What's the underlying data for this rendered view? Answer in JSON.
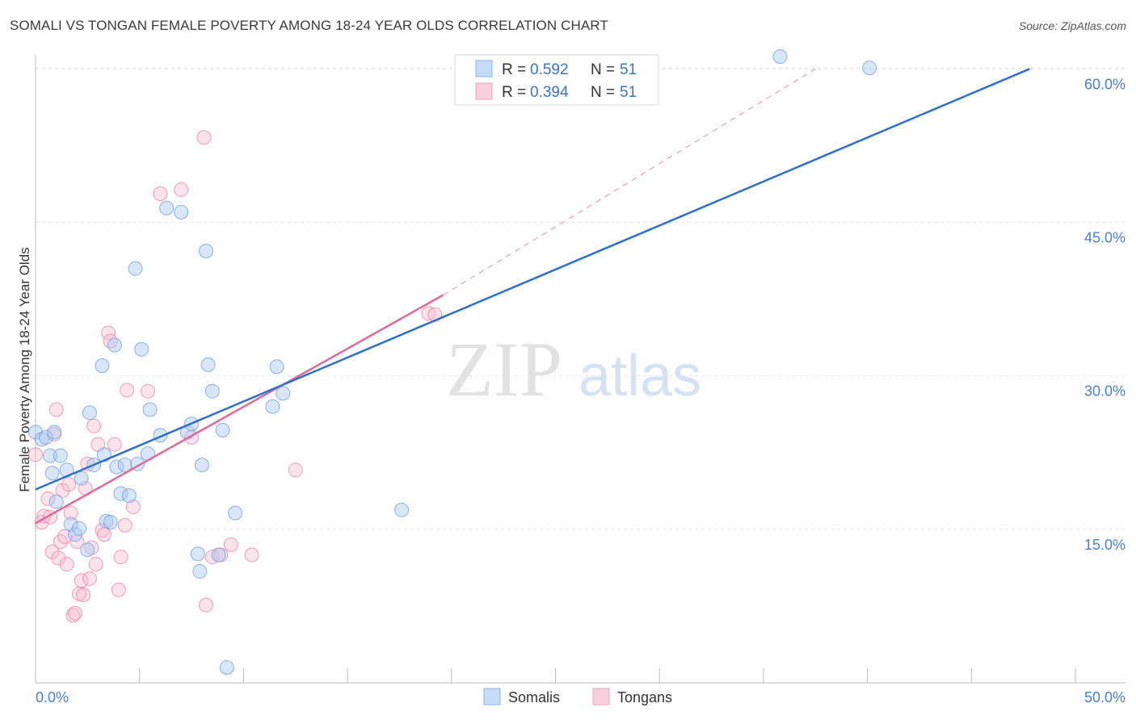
{
  "header": {
    "title": "SOMALI VS TONGAN FEMALE POVERTY AMONG 18-24 YEAR OLDS CORRELATION CHART",
    "source": "Source: ZipAtlas.com"
  },
  "watermark": {
    "part1": "ZIP",
    "part2": "atlas"
  },
  "legend": {
    "rows": [
      {
        "r_label": "R =",
        "r_value": "0.592",
        "n_label": "N =",
        "n_value": "51",
        "color": "#a8c8f0"
      },
      {
        "r_label": "R =",
        "r_value": "0.394",
        "n_label": "N =",
        "n_value": "51",
        "color": "#f5b8cc"
      }
    ]
  },
  "chart_data": {
    "type": "scatter",
    "title": "SOMALI VS TONGAN FEMALE POVERTY AMONG 18-24 YEAR OLDS CORRELATION CHART",
    "xlabel": "",
    "ylabel": "Female Poverty Among 18-24 Year Olds",
    "xlim": [
      0,
      50
    ],
    "ylim": [
      0,
      62
    ],
    "x_tick_labels": [
      "0.0%",
      "50.0%"
    ],
    "y_ticks": [
      15,
      30,
      45,
      60
    ],
    "y_tick_labels": [
      "15.0%",
      "30.0%",
      "45.0%",
      "60.0%"
    ],
    "colors": {
      "Somalis": "#6a9be0",
      "Tongans": "#ec7fa3",
      "somali_line": "#2d6fce",
      "tongan_line": "#e06a96"
    },
    "series": [
      {
        "name": "Somalis",
        "r": 0.592,
        "n": 51,
        "trend": {
          "x": [
            0,
            47.8
          ],
          "y": [
            18.9,
            60.0
          ]
        },
        "points": [
          [
            0.0,
            24.5
          ],
          [
            0.3,
            23.8
          ],
          [
            0.5,
            24.0
          ],
          [
            0.7,
            22.2
          ],
          [
            0.8,
            20.5
          ],
          [
            0.9,
            24.5
          ],
          [
            1.0,
            17.7
          ],
          [
            1.2,
            22.2
          ],
          [
            1.5,
            20.8
          ],
          [
            1.7,
            15.5
          ],
          [
            1.9,
            14.5
          ],
          [
            2.1,
            15.1
          ],
          [
            2.2,
            20.0
          ],
          [
            2.5,
            13.0
          ],
          [
            2.6,
            26.4
          ],
          [
            2.8,
            21.3
          ],
          [
            3.2,
            31.0
          ],
          [
            3.3,
            22.3
          ],
          [
            3.4,
            15.8
          ],
          [
            3.6,
            15.7
          ],
          [
            3.8,
            33.0
          ],
          [
            3.9,
            21.1
          ],
          [
            4.1,
            18.5
          ],
          [
            4.3,
            21.3
          ],
          [
            4.5,
            18.3
          ],
          [
            4.8,
            40.5
          ],
          [
            4.9,
            21.4
          ],
          [
            5.1,
            32.6
          ],
          [
            5.4,
            22.4
          ],
          [
            5.5,
            26.7
          ],
          [
            6.0,
            24.2
          ],
          [
            6.3,
            46.4
          ],
          [
            7.0,
            46.0
          ],
          [
            7.3,
            24.5
          ],
          [
            7.5,
            25.3
          ],
          [
            7.8,
            12.6
          ],
          [
            7.9,
            10.9
          ],
          [
            8.0,
            21.3
          ],
          [
            8.2,
            42.2
          ],
          [
            8.3,
            31.1
          ],
          [
            8.5,
            28.5
          ],
          [
            8.8,
            12.5
          ],
          [
            9.0,
            24.7
          ],
          [
            9.2,
            1.5
          ],
          [
            9.6,
            16.6
          ],
          [
            11.4,
            27.0
          ],
          [
            11.6,
            30.9
          ],
          [
            11.9,
            28.3
          ],
          [
            17.6,
            16.9
          ],
          [
            35.8,
            61.2
          ],
          [
            40.1,
            60.1
          ]
        ]
      },
      {
        "name": "Tongans",
        "r": 0.394,
        "n": 51,
        "trend": {
          "x": [
            0,
            19.6
          ],
          "y": [
            15.6,
            37.9
          ]
        },
        "trend_extension": {
          "x": [
            19.6,
            37.5
          ],
          "y": [
            37.9,
            60.0
          ]
        },
        "points": [
          [
            0.0,
            22.3
          ],
          [
            0.3,
            15.7
          ],
          [
            0.4,
            16.3
          ],
          [
            0.6,
            18.0
          ],
          [
            0.7,
            16.2
          ],
          [
            0.8,
            12.8
          ],
          [
            0.9,
            24.3
          ],
          [
            1.0,
            26.7
          ],
          [
            1.1,
            12.2
          ],
          [
            1.2,
            13.8
          ],
          [
            1.3,
            18.8
          ],
          [
            1.4,
            14.3
          ],
          [
            1.5,
            11.6
          ],
          [
            1.6,
            19.4
          ],
          [
            1.7,
            16.6
          ],
          [
            1.8,
            6.6
          ],
          [
            1.9,
            6.8
          ],
          [
            2.0,
            13.8
          ],
          [
            2.1,
            8.7
          ],
          [
            2.2,
            10.0
          ],
          [
            2.3,
            8.6
          ],
          [
            2.4,
            19.0
          ],
          [
            2.5,
            21.4
          ],
          [
            2.6,
            10.2
          ],
          [
            2.7,
            13.2
          ],
          [
            2.8,
            25.1
          ],
          [
            2.9,
            11.6
          ],
          [
            3.0,
            23.3
          ],
          [
            3.2,
            14.9
          ],
          [
            3.3,
            14.5
          ],
          [
            3.5,
            34.2
          ],
          [
            3.6,
            33.4
          ],
          [
            3.8,
            23.3
          ],
          [
            4.0,
            9.1
          ],
          [
            4.1,
            12.3
          ],
          [
            4.3,
            15.4
          ],
          [
            4.4,
            28.6
          ],
          [
            4.7,
            17.2
          ],
          [
            5.4,
            28.5
          ],
          [
            6.0,
            47.8
          ],
          [
            7.5,
            24.0
          ],
          [
            8.1,
            53.3
          ],
          [
            8.2,
            7.6
          ],
          [
            8.5,
            12.3
          ],
          [
            8.9,
            12.5
          ],
          [
            10.4,
            12.5
          ],
          [
            12.5,
            20.8
          ],
          [
            18.9,
            36.1
          ],
          [
            19.2,
            36.0
          ],
          [
            9.4,
            13.5
          ],
          [
            7.0,
            48.2
          ]
        ]
      }
    ]
  }
}
